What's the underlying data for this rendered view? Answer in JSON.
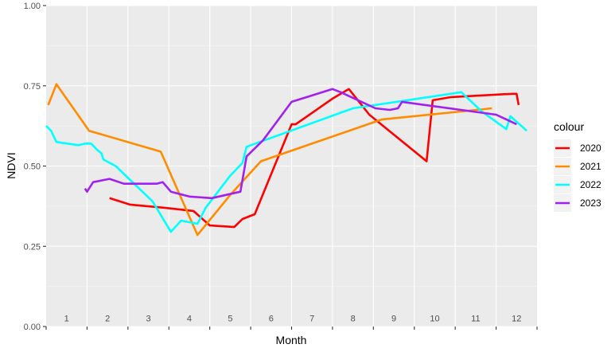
{
  "chart_data": {
    "type": "line",
    "xlabel": "Month",
    "ylabel": "NDVI",
    "xlim": [
      0.5,
      12.5
    ],
    "ylim": [
      0,
      1
    ],
    "y_ticks": [
      "0.00",
      "0.25",
      "0.50",
      "0.75",
      "1.00"
    ],
    "month_labels": [
      "1",
      "2",
      "3",
      "4",
      "5",
      "6",
      "7",
      "8",
      "9",
      "10",
      "11",
      "12"
    ],
    "grid": true,
    "legend_title": "colour",
    "legend_position": "right",
    "series": [
      {
        "name": "2020",
        "color": "#ff0000",
        "points": [
          [
            2.05,
            0.4
          ],
          [
            2.55,
            0.38
          ],
          [
            3.4,
            0.37
          ],
          [
            4.1,
            0.36
          ],
          [
            4.5,
            0.315
          ],
          [
            5.1,
            0.31
          ],
          [
            5.3,
            0.335
          ],
          [
            5.6,
            0.35
          ],
          [
            6.5,
            0.63
          ],
          [
            6.6,
            0.63
          ],
          [
            7.5,
            0.71
          ],
          [
            7.9,
            0.74
          ],
          [
            8.4,
            0.66
          ],
          [
            9.8,
            0.515
          ],
          [
            9.95,
            0.705
          ],
          [
            10.4,
            0.715
          ],
          [
            11.9,
            0.725
          ],
          [
            12.0,
            0.725
          ],
          [
            12.05,
            0.69
          ]
        ]
      },
      {
        "name": "2021",
        "color": "#ff8c00",
        "points": [
          [
            0.55,
            0.69
          ],
          [
            0.75,
            0.755
          ],
          [
            1.55,
            0.61
          ],
          [
            3.3,
            0.545
          ],
          [
            4.2,
            0.285
          ],
          [
            5.0,
            0.41
          ],
          [
            5.75,
            0.515
          ],
          [
            8.7,
            0.645
          ],
          [
            11.4,
            0.68
          ]
        ]
      },
      {
        "name": "2022",
        "color": "#00ffff",
        "points": [
          [
            0.5,
            0.625
          ],
          [
            0.62,
            0.61
          ],
          [
            0.75,
            0.575
          ],
          [
            1.3,
            0.565
          ],
          [
            1.45,
            0.57
          ],
          [
            1.6,
            0.57
          ],
          [
            1.75,
            0.55
          ],
          [
            1.85,
            0.54
          ],
          [
            1.9,
            0.52
          ],
          [
            2.2,
            0.5
          ],
          [
            3.1,
            0.39
          ],
          [
            3.55,
            0.295
          ],
          [
            3.8,
            0.33
          ],
          [
            4.2,
            0.32
          ],
          [
            4.4,
            0.37
          ],
          [
            5.0,
            0.47
          ],
          [
            5.3,
            0.51
          ],
          [
            5.4,
            0.56
          ],
          [
            8.0,
            0.68
          ],
          [
            10.65,
            0.73
          ],
          [
            11.15,
            0.67
          ],
          [
            11.75,
            0.615
          ],
          [
            11.85,
            0.655
          ],
          [
            12.25,
            0.61
          ]
        ]
      },
      {
        "name": "2023",
        "color": "#a020f0",
        "points": [
          [
            1.45,
            0.43
          ],
          [
            1.5,
            0.42
          ],
          [
            1.65,
            0.45
          ],
          [
            2.05,
            0.46
          ],
          [
            2.4,
            0.445
          ],
          [
            3.2,
            0.445
          ],
          [
            3.35,
            0.45
          ],
          [
            3.55,
            0.42
          ],
          [
            4.0,
            0.405
          ],
          [
            4.55,
            0.4
          ],
          [
            5.25,
            0.42
          ],
          [
            5.4,
            0.53
          ],
          [
            5.8,
            0.58
          ],
          [
            6.5,
            0.7
          ],
          [
            7.5,
            0.74
          ],
          [
            7.7,
            0.73
          ],
          [
            8.55,
            0.68
          ],
          [
            8.9,
            0.675
          ],
          [
            9.1,
            0.68
          ],
          [
            9.2,
            0.7
          ],
          [
            11.5,
            0.66
          ],
          [
            12.0,
            0.63
          ]
        ]
      }
    ]
  }
}
